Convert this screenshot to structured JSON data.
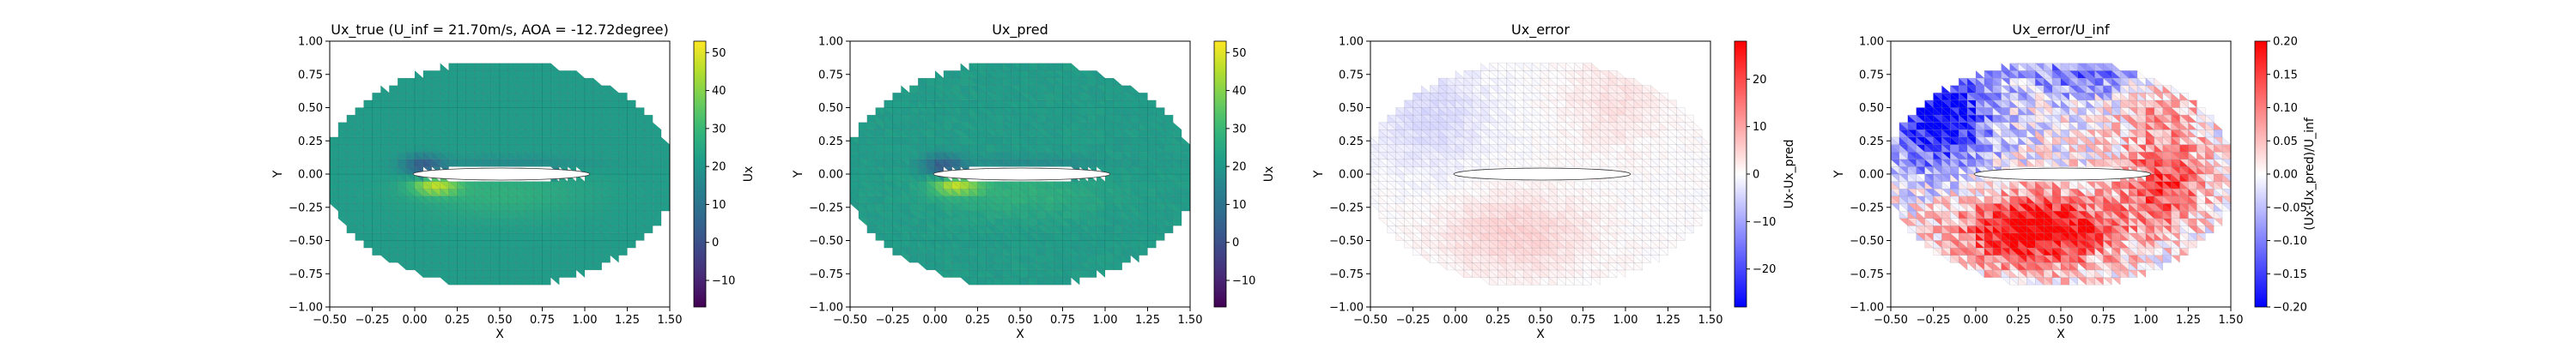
{
  "chart_data": [
    {
      "type": "heatmap",
      "title": "Ux_true (U_inf = 21.70m/s, AOA = -12.72degree)",
      "xlabel": "X",
      "ylabel": "Y",
      "xlim": [
        -0.5,
        1.5
      ],
      "ylim": [
        -1.0,
        1.0
      ],
      "xticks": [
        "−0.50",
        "−0.25",
        "0.00",
        "0.25",
        "0.50",
        "0.75",
        "1.00",
        "1.25",
        "1.50"
      ],
      "yticks": [
        "−1.00",
        "−0.75",
        "−0.50",
        "−0.25",
        "0.00",
        "0.25",
        "0.50",
        "0.75",
        "1.00"
      ],
      "colorbar": {
        "label": "Ux",
        "colormap": "viridis",
        "range": [
          -17,
          53
        ],
        "ticks": [
          "−10",
          "0",
          "10",
          "20",
          "30",
          "40",
          "50"
        ],
        "tick_values": [
          -10,
          0,
          10,
          20,
          30,
          40,
          50
        ]
      },
      "field": "true",
      "grid": false
    },
    {
      "type": "heatmap",
      "title": "Ux_pred",
      "xlabel": "X",
      "ylabel": "Y",
      "xlim": [
        -0.5,
        1.5
      ],
      "ylim": [
        -1.0,
        1.0
      ],
      "xticks": [
        "−0.50",
        "−0.25",
        "0.00",
        "0.25",
        "0.50",
        "0.75",
        "1.00",
        "1.25",
        "1.50"
      ],
      "yticks": [
        "−1.00",
        "−0.75",
        "−0.50",
        "−0.25",
        "0.00",
        "0.25",
        "0.50",
        "0.75",
        "1.00"
      ],
      "colorbar": {
        "label": "Ux",
        "colormap": "viridis",
        "range": [
          -17,
          53
        ],
        "ticks": [
          "−10",
          "0",
          "10",
          "20",
          "30",
          "40",
          "50"
        ],
        "tick_values": [
          -10,
          0,
          10,
          20,
          30,
          40,
          50
        ]
      },
      "field": "pred",
      "grid": false
    },
    {
      "type": "heatmap",
      "title": "Ux_error",
      "xlabel": "X",
      "ylabel": "Y",
      "xlim": [
        -0.5,
        1.5
      ],
      "ylim": [
        -1.0,
        1.0
      ],
      "xticks": [
        "−0.50",
        "−0.25",
        "0.00",
        "0.25",
        "0.50",
        "0.75",
        "1.00",
        "1.25",
        "1.50"
      ],
      "yticks": [
        "−1.00",
        "−0.75",
        "−0.50",
        "−0.25",
        "0.00",
        "0.25",
        "0.50",
        "0.75",
        "1.00"
      ],
      "colorbar": {
        "label": "Ux-Ux_pred",
        "colormap": "bwr",
        "range": [
          -28,
          28
        ],
        "ticks": [
          "−20",
          "−10",
          "0",
          "10",
          "20"
        ],
        "tick_values": [
          -20,
          -10,
          0,
          10,
          20
        ]
      },
      "field": "error",
      "grid": false
    },
    {
      "type": "heatmap",
      "title": "Ux_error/U_inf",
      "xlabel": "X",
      "ylabel": "Y",
      "xlim": [
        -0.5,
        1.5
      ],
      "ylim": [
        -1.0,
        1.0
      ],
      "xticks": [
        "−0.50",
        "−0.25",
        "0.00",
        "0.25",
        "0.50",
        "0.75",
        "1.00",
        "1.25",
        "1.50"
      ],
      "yticks": [
        "−1.00",
        "−0.75",
        "−0.50",
        "−0.25",
        "0.00",
        "0.25",
        "0.50",
        "0.75",
        "1.00"
      ],
      "colorbar": {
        "label": "(Ux-Ux_pred)/U_inf",
        "colormap": "bwr",
        "range": [
          -0.2,
          0.2
        ],
        "ticks": [
          "−0.20",
          "−0.15",
          "−0.10",
          "−0.05",
          "0.00",
          "0.05",
          "0.10",
          "0.15",
          "0.20"
        ],
        "tick_values": [
          -0.2,
          -0.15,
          -0.1,
          -0.05,
          0,
          0.05,
          0.1,
          0.15,
          0.2
        ]
      },
      "field": "rel_error",
      "grid": false
    }
  ]
}
